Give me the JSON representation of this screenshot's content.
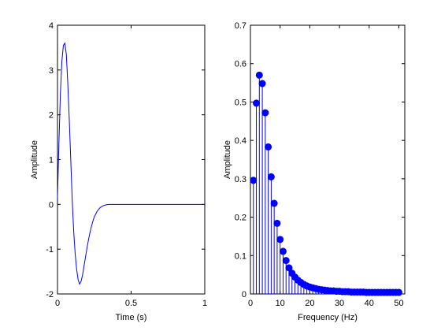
{
  "chart_data": [
    {
      "type": "line",
      "xlabel": "Time (s)",
      "ylabel": "Amplitude",
      "xlim": [
        0,
        1
      ],
      "ylim": [
        -2,
        4
      ],
      "xticks": [
        0,
        0.5,
        1
      ],
      "xtick_labels": [
        "0",
        "0.5",
        "1"
      ],
      "yticks": [
        -2,
        -1,
        0,
        1,
        2,
        3,
        4
      ],
      "ytick_labels": [
        "-2",
        "-1",
        "0",
        "1",
        "2",
        "3",
        "4"
      ],
      "grid": false,
      "color": "#0000ff",
      "series": [
        {
          "x": [
            0,
            0.01,
            0.02,
            0.03,
            0.04,
            0.05,
            0.06,
            0.07,
            0.08,
            0.09,
            0.1,
            0.11,
            0.12,
            0.13,
            0.14,
            0.15,
            0.16,
            0.17,
            0.18,
            0.19,
            0.2,
            0.21,
            0.22,
            0.23,
            0.24,
            0.25,
            0.27,
            0.29,
            0.31,
            0.33,
            0.35,
            0.38,
            0.42,
            0.5,
            0.6,
            0.7,
            0.8,
            0.9,
            1.0
          ],
          "y": [
            0.15,
            1.4,
            2.5,
            3.2,
            3.55,
            3.6,
            3.35,
            2.7,
            1.9,
            1.0,
            0.1,
            -0.6,
            -1.1,
            -1.45,
            -1.68,
            -1.78,
            -1.72,
            -1.58,
            -1.38,
            -1.18,
            -0.98,
            -0.8,
            -0.64,
            -0.5,
            -0.38,
            -0.28,
            -0.15,
            -0.07,
            -0.03,
            -0.01,
            0.0,
            0.0,
            0.0,
            0.0,
            0.0,
            0.0,
            0.0,
            0.0,
            0.0
          ]
        }
      ]
    },
    {
      "type": "stem",
      "xlabel": "Frequency (Hz)",
      "ylabel": "Amplitude",
      "xlim": [
        0,
        52
      ],
      "ylim": [
        0,
        0.7
      ],
      "xticks": [
        0,
        10,
        20,
        30,
        40,
        50
      ],
      "xtick_labels": [
        "0",
        "10",
        "20",
        "30",
        "40",
        "50"
      ],
      "yticks": [
        0,
        0.1,
        0.2,
        0.3,
        0.4,
        0.5,
        0.6,
        0.7
      ],
      "ytick_labels": [
        "0",
        "0.1",
        "0.2",
        "0.3",
        "0.4",
        "0.5",
        "0.6",
        "0.7"
      ],
      "grid": false,
      "color": "#0000ff",
      "series": [
        {
          "x": [
            1,
            2,
            3,
            4,
            5,
            6,
            7,
            8,
            9,
            10,
            11,
            12,
            13,
            14,
            15,
            16,
            17,
            18,
            19,
            20,
            21,
            22,
            23,
            24,
            25,
            26,
            27,
            28,
            29,
            30,
            31,
            32,
            33,
            34,
            35,
            36,
            37,
            38,
            39,
            40,
            41,
            42,
            43,
            44,
            45,
            46,
            47,
            48,
            49,
            50
          ],
          "y": [
            0.296,
            0.497,
            0.57,
            0.548,
            0.472,
            0.383,
            0.305,
            0.236,
            0.184,
            0.142,
            0.111,
            0.087,
            0.068,
            0.054,
            0.044,
            0.036,
            0.03,
            0.025,
            0.021,
            0.018,
            0.016,
            0.014,
            0.012,
            0.011,
            0.01,
            0.009,
            0.008,
            0.008,
            0.007,
            0.007,
            0.006,
            0.006,
            0.006,
            0.005,
            0.005,
            0.005,
            0.005,
            0.005,
            0.004,
            0.004,
            0.004,
            0.004,
            0.004,
            0.004,
            0.004,
            0.004,
            0.004,
            0.004,
            0.004,
            0.004
          ]
        }
      ]
    }
  ]
}
